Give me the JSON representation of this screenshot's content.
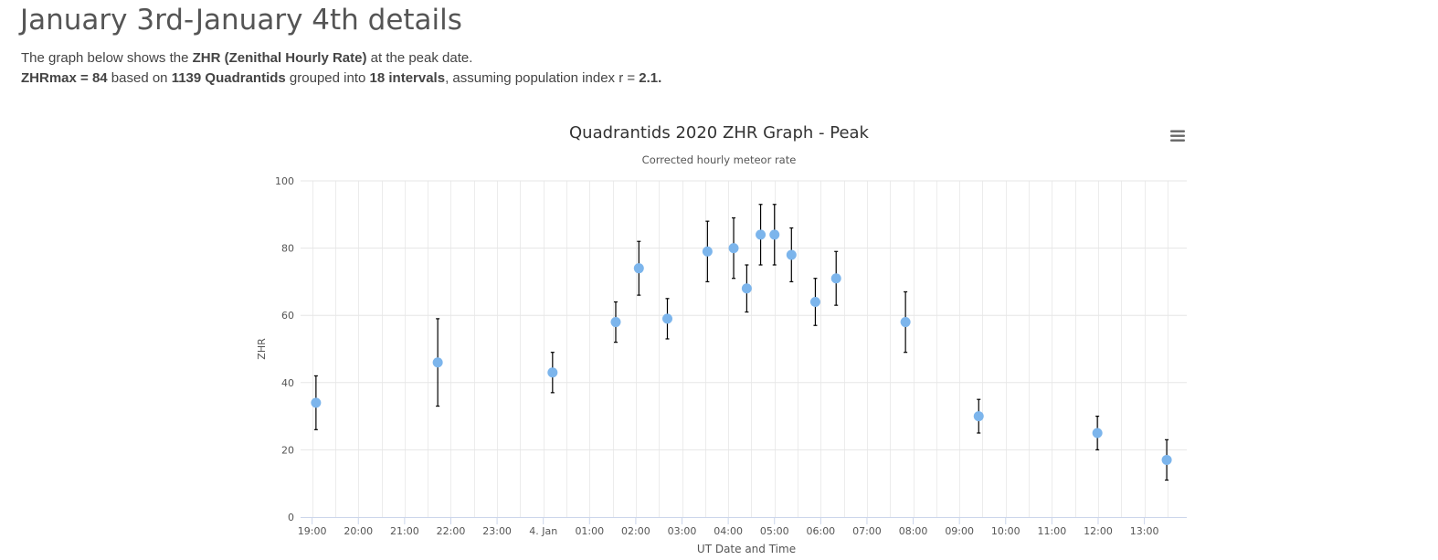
{
  "page": {
    "title": "January 3rd-January 4th details",
    "line1": {
      "p1": "The graph below shows the ",
      "b1": "ZHR (Zenithal Hourly Rate)",
      "p2": " at the peak date."
    },
    "line2": {
      "b1": "ZHRmax = 84",
      "p1": " based on ",
      "b2": "1139 Quadrantids",
      "p2": " grouped into ",
      "b3": "18 intervals",
      "p3": ", assuming population index r = ",
      "b4": "2.1."
    }
  },
  "chart_data": {
    "type": "scatter",
    "title": "Quadrantids 2020 ZHR Graph - Peak",
    "subtitle": "Corrected hourly meteor rate",
    "xlabel": "UT Date and Time",
    "ylabel": "ZHR",
    "ylim": [
      0,
      100
    ],
    "yticks": [
      0,
      20,
      40,
      60,
      80,
      100
    ],
    "xlim": [
      "2020-01-03 18:45",
      "2020-01-04 13:55"
    ],
    "xticks": [
      "19:00",
      "20:00",
      "21:00",
      "22:00",
      "23:00",
      "4. Jan",
      "01:00",
      "02:00",
      "03:00",
      "04:00",
      "05:00",
      "06:00",
      "07:00",
      "08:00",
      "09:00",
      "10:00",
      "11:00",
      "12:00",
      "13:00"
    ],
    "grid": true,
    "point_color": "#7cb5ec",
    "error_bar_color": "#000000",
    "points": [
      {
        "x": "2020-01-03 19:05",
        "y": 34,
        "low": 26,
        "high": 42
      },
      {
        "x": "2020-01-03 21:43",
        "y": 46,
        "low": 33,
        "high": 59
      },
      {
        "x": "2020-01-04 00:12",
        "y": 43,
        "low": 37,
        "high": 49
      },
      {
        "x": "2020-01-04 01:34",
        "y": 58,
        "low": 52,
        "high": 64
      },
      {
        "x": "2020-01-04 02:04",
        "y": 74,
        "low": 66,
        "high": 82
      },
      {
        "x": "2020-01-04 02:41",
        "y": 59,
        "low": 53,
        "high": 65
      },
      {
        "x": "2020-01-04 03:33",
        "y": 79,
        "low": 70,
        "high": 88
      },
      {
        "x": "2020-01-04 04:07",
        "y": 80,
        "low": 71,
        "high": 89
      },
      {
        "x": "2020-01-04 04:24",
        "y": 68,
        "low": 61,
        "high": 75
      },
      {
        "x": "2020-01-04 04:42",
        "y": 84,
        "low": 75,
        "high": 93
      },
      {
        "x": "2020-01-04 05:00",
        "y": 84,
        "low": 75,
        "high": 93
      },
      {
        "x": "2020-01-04 05:22",
        "y": 78,
        "low": 70,
        "high": 86
      },
      {
        "x": "2020-01-04 05:53",
        "y": 64,
        "low": 57,
        "high": 71
      },
      {
        "x": "2020-01-04 06:20",
        "y": 71,
        "low": 63,
        "high": 79
      },
      {
        "x": "2020-01-04 07:50",
        "y": 58,
        "low": 49,
        "high": 67
      },
      {
        "x": "2020-01-04 09:25",
        "y": 30,
        "low": 25,
        "high": 35
      },
      {
        "x": "2020-01-04 11:59",
        "y": 25,
        "low": 20,
        "high": 30
      },
      {
        "x": "2020-01-04 13:29",
        "y": 17,
        "low": 11,
        "high": 23
      }
    ]
  },
  "icons": {
    "menu": "hamburger-menu-icon"
  }
}
